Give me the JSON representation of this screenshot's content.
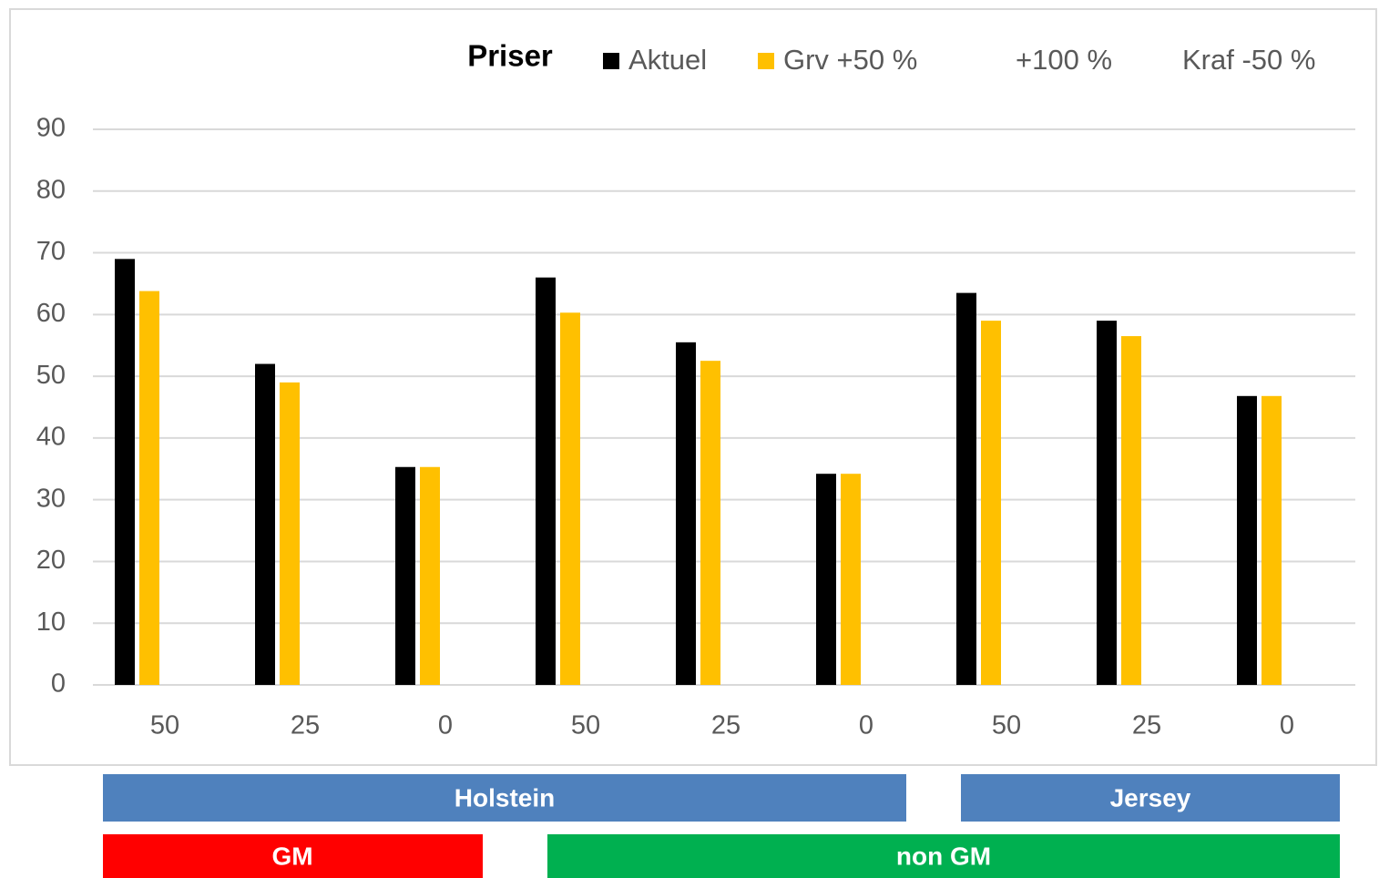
{
  "chart_data": {
    "type": "bar",
    "title": "Priser",
    "categories": [
      "50",
      "25",
      "0",
      "50",
      "25",
      "0",
      "50",
      "25",
      "0"
    ],
    "series": [
      {
        "name": "Aktuel",
        "color": "#000000",
        "values": [
          69,
          52,
          35.3,
          66,
          55.5,
          34.2,
          63.5,
          59,
          46.8
        ]
      },
      {
        "name": "Grv +50 %",
        "color": "#ffc000",
        "values": [
          63.8,
          49,
          35.3,
          60.3,
          52.5,
          34.2,
          59,
          56.5,
          46.8
        ]
      },
      {
        "name": "+100 %",
        "values": [
          null,
          null,
          null,
          null,
          null,
          null,
          null,
          null,
          null
        ]
      },
      {
        "name": "Kraf -50 %",
        "values": [
          null,
          null,
          null,
          null,
          null,
          null,
          null,
          null,
          null
        ]
      }
    ],
    "ylim": [
      0,
      90
    ],
    "yticks": [
      0,
      10,
      20,
      30,
      40,
      50,
      60,
      70,
      80,
      90
    ],
    "grid": true,
    "legend": "top",
    "annotations": [
      "Holstein",
      "Jersey",
      "GM",
      "non GM"
    ]
  }
}
